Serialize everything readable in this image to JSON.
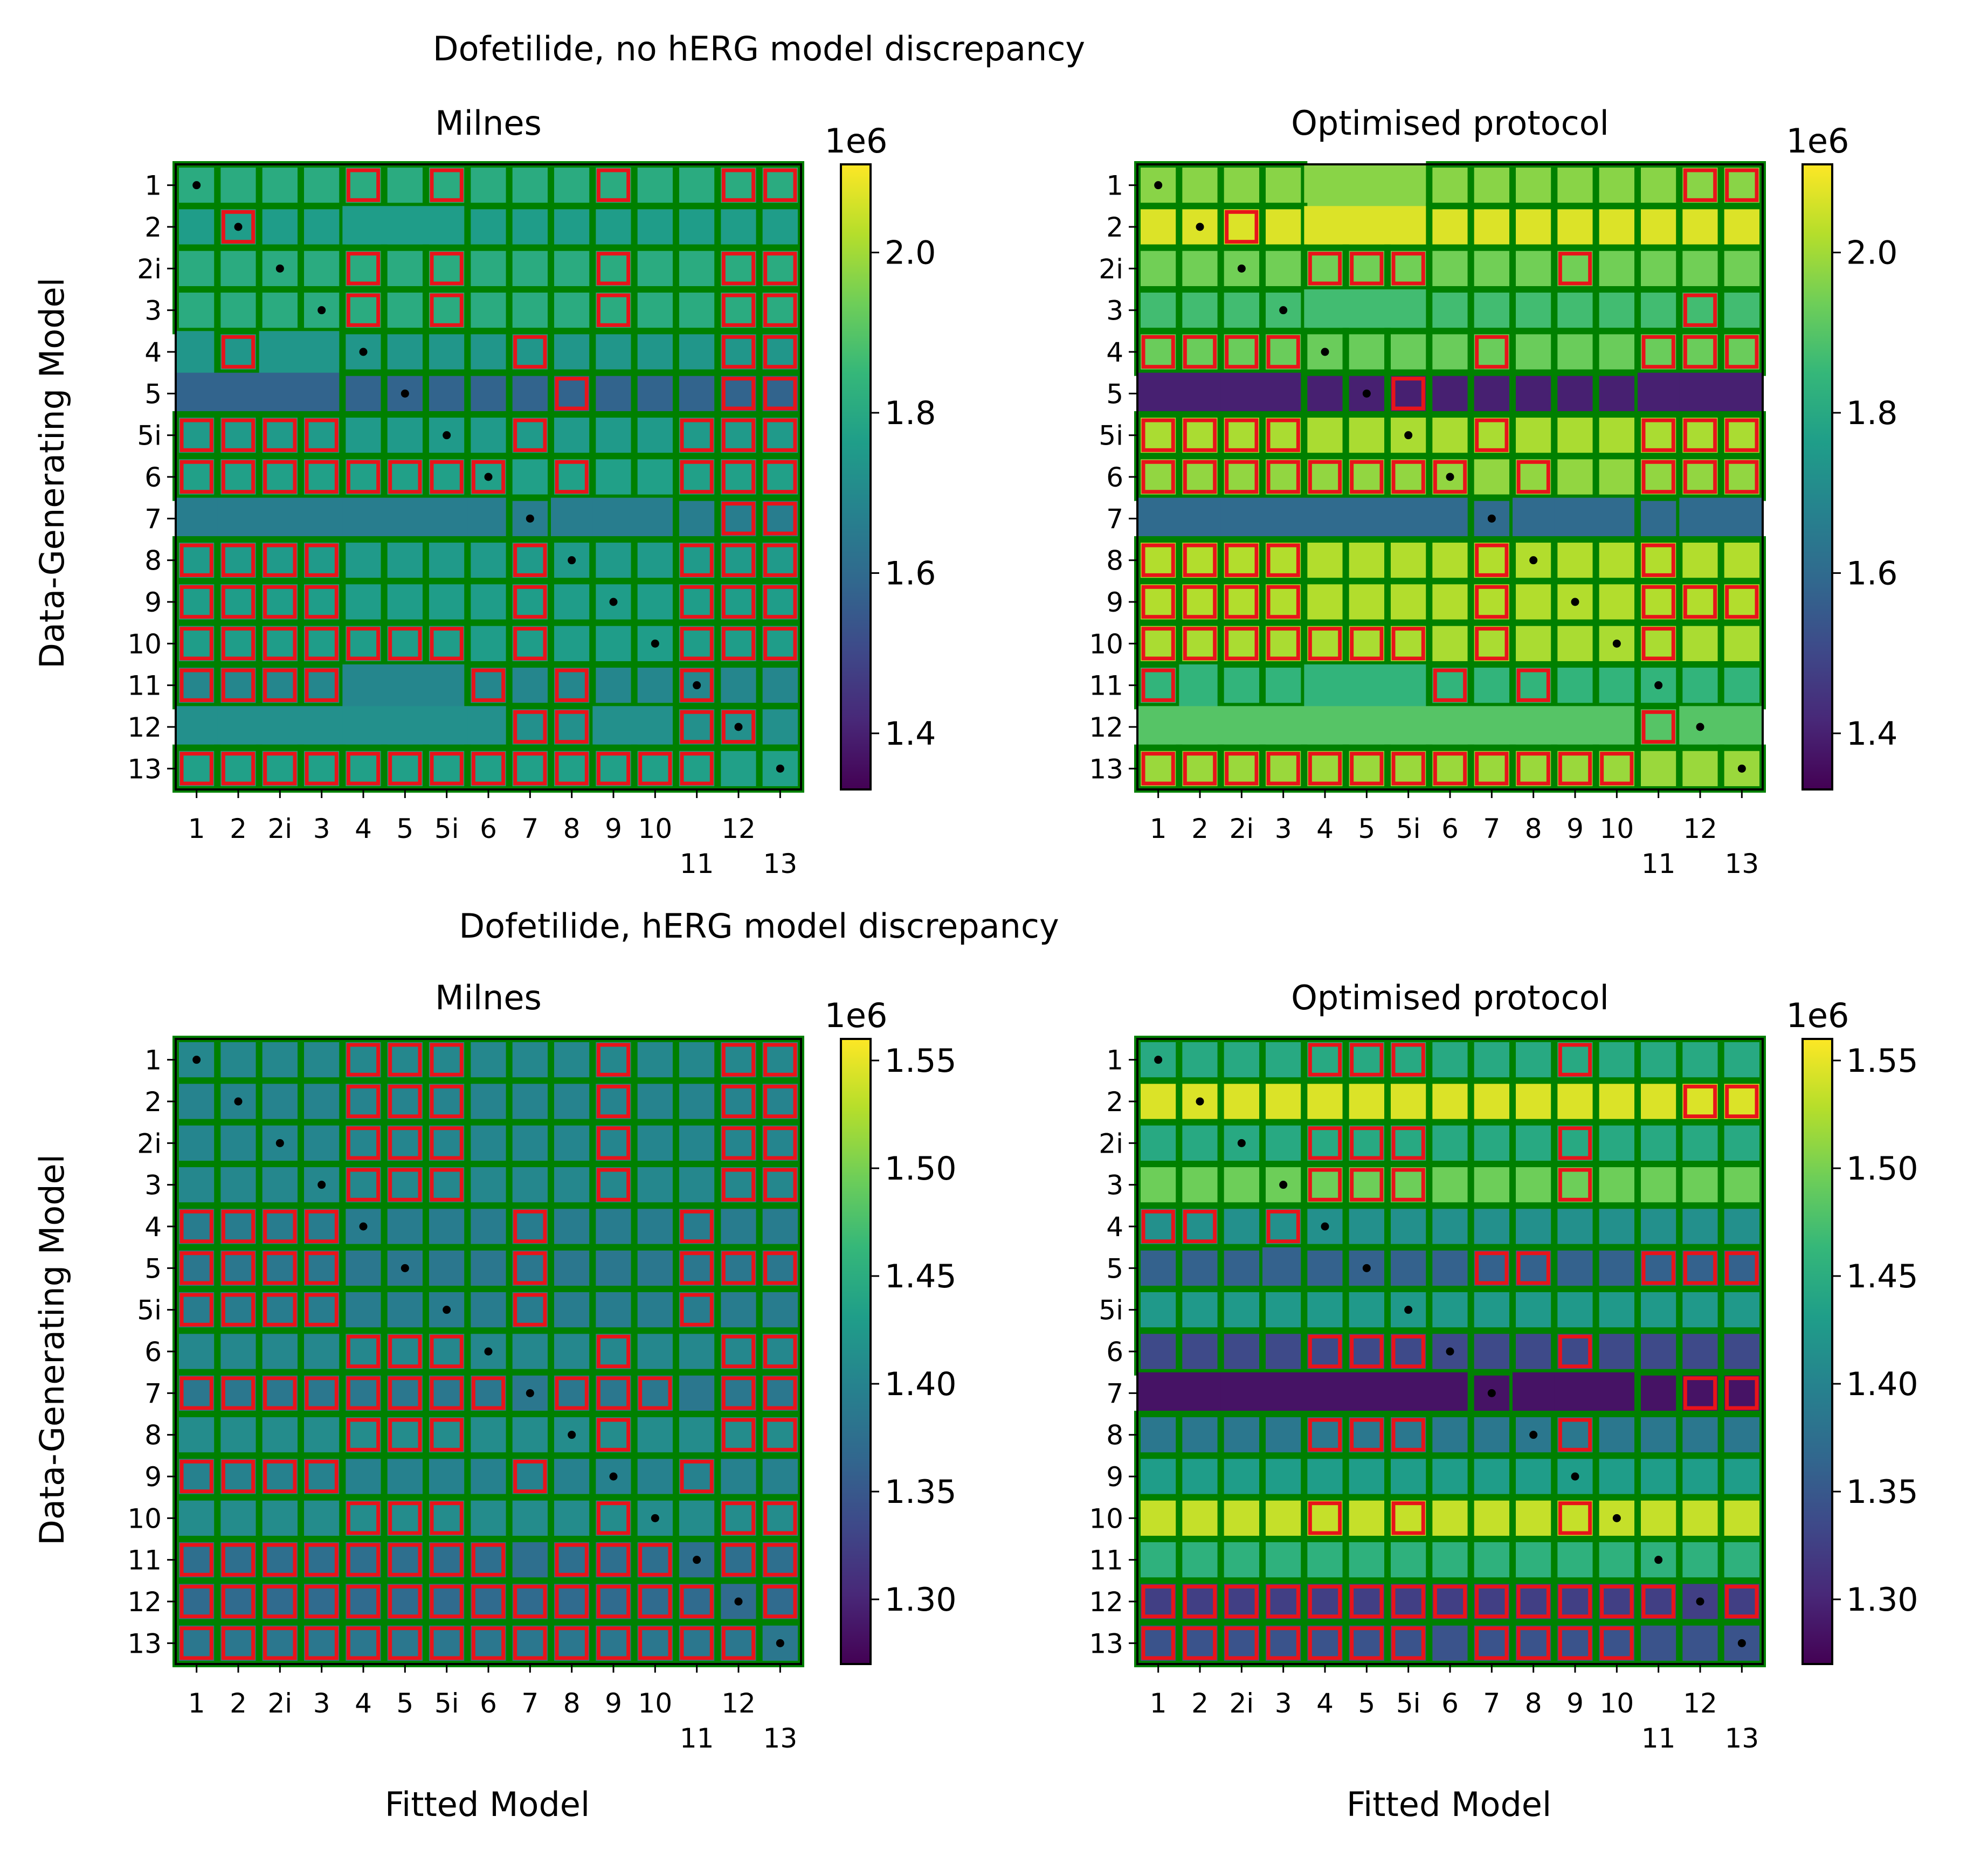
{
  "figure": {
    "top_title": "Dofetilide, no hERG model discrepancy",
    "bottom_title": "Dofetilide, hERG model discrepancy",
    "ylabel": "Data-Generating Model",
    "xlabel": "Fitted Model",
    "colormap": "viridis"
  },
  "models": [
    "1",
    "2",
    "2i",
    "3",
    "4",
    "5",
    "5i",
    "6",
    "7",
    "8",
    "9",
    "10",
    "11",
    "12",
    "13"
  ],
  "chart_data": [
    {
      "type": "heatmap",
      "panel": "top-left",
      "title": "Milnes",
      "group_title": "Dofetilide, no hERG model discrepancy",
      "colorbar": {
        "exponent_label": "1e6",
        "vmin": 1.33,
        "vmax": 2.11,
        "ticks": [
          1.4,
          1.6,
          1.8,
          2.0
        ],
        "tick_labels": [
          "1.4",
          "1.6",
          "1.8",
          "2.0"
        ]
      },
      "row_values": [
        1.81,
        1.76,
        1.81,
        1.81,
        1.74,
        1.58,
        1.75,
        1.77,
        1.66,
        1.75,
        1.76,
        1.76,
        1.69,
        1.72,
        1.77
      ],
      "red_boxes": [
        "000010100010011",
        "010000000000000",
        "000010100010011",
        "000010100010011",
        "010000001000011",
        "000000000100011",
        "111100001000111",
        "111111110100111",
        "000000000000011",
        "111100001000111",
        "111100001000111",
        "111111101000111",
        "111100010100100",
        "000000001100110",
        "111111111111100"
      ],
      "squares": [
        "111111111111111",
        "111100011111111",
        "111111111111111",
        "111111111111111",
        "010011111111111",
        "000011111111111",
        "111111111111111",
        "111111111111111",
        "000000001000111",
        "111111111111111",
        "111111111111111",
        "111111111111111",
        "111100011111111",
        "000000001100111",
        "111111111111111"
      ]
    },
    {
      "type": "heatmap",
      "panel": "top-right",
      "title": "Optimised protocol",
      "group_title": "Dofetilide, no hERG model discrepancy",
      "colorbar": {
        "exponent_label": "1e6",
        "vmin": 1.33,
        "vmax": 2.11,
        "ticks": [
          1.4,
          1.6,
          1.8,
          2.0
        ],
        "tick_labels": [
          "1.4",
          "1.6",
          "1.8",
          "2.0"
        ]
      },
      "row_values": [
        1.97,
        2.07,
        1.94,
        1.87,
        1.93,
        1.4,
        2.01,
        1.98,
        1.6,
        2.02,
        2.02,
        2.01,
        1.84,
        1.9,
        1.99
      ],
      "red_boxes": [
        "000000000000011",
        "001000000000000",
        "000011100010000",
        "000000000000010",
        "111100001000111",
        "000000100000000",
        "111100001000111",
        "111111110100111",
        "000000000000000",
        "111100001000100",
        "111100001000111",
        "111111101000100",
        "100000010100000",
        "000000000000100",
        "111111111111000"
      ],
      "squares": [
        "111100011111111",
        "111100011111111",
        "111111111111111",
        "111100011111111",
        "111111111111111",
        "000011111111000",
        "111111111111111",
        "111111111111111",
        "000000001000100",
        "111111111111111",
        "111111111111111",
        "111111111111111",
        "101100011111111",
        "000000000000100",
        "111111111111111"
      ]
    },
    {
      "type": "heatmap",
      "panel": "bottom-left",
      "title": "Milnes",
      "group_title": "Dofetilide, hERG model discrepancy",
      "colorbar": {
        "exponent_label": "1e6",
        "vmin": 1.27,
        "vmax": 1.56,
        "ticks": [
          1.3,
          1.35,
          1.4,
          1.45,
          1.5,
          1.55
        ],
        "tick_labels": [
          "1.30",
          "1.35",
          "1.40",
          "1.45",
          "1.50",
          "1.55"
        ]
      },
      "row_values": [
        1.405,
        1.4,
        1.402,
        1.405,
        1.392,
        1.385,
        1.392,
        1.405,
        1.385,
        1.41,
        1.398,
        1.41,
        1.375,
        1.37,
        1.385
      ],
      "red_boxes": [
        "000011100010011",
        "000011100010011",
        "000011100010011",
        "000011100010011",
        "111100001000100",
        "111100001000111",
        "111100001000100",
        "000011100010011",
        "111111110111011",
        "000011100010011",
        "111100001000100",
        "000011100010011",
        "111111110111011",
        "111111111111101",
        "111111111111110"
      ],
      "squares": [
        "111111111111111",
        "111111111111111",
        "111111111111111",
        "111111111111111",
        "111111111111111",
        "111111111111111",
        "111111111111111",
        "111111111111111",
        "111111111111111",
        "111111111111111",
        "111111111111111",
        "111111111111111",
        "111111111111111",
        "111111111111111",
        "111111111111111"
      ]
    },
    {
      "type": "heatmap",
      "panel": "bottom-right",
      "title": "Optimised protocol",
      "group_title": "Dofetilide, hERG model discrepancy",
      "colorbar": {
        "exponent_label": "1e6",
        "vmin": 1.27,
        "vmax": 1.56,
        "ticks": [
          1.3,
          1.35,
          1.4,
          1.45,
          1.5,
          1.55
        ],
        "tick_labels": [
          "1.30",
          "1.35",
          "1.40",
          "1.45",
          "1.50",
          "1.55"
        ]
      },
      "row_values": [
        1.445,
        1.545,
        1.445,
        1.495,
        1.415,
        1.36,
        1.425,
        1.335,
        1.285,
        1.385,
        1.43,
        1.535,
        1.455,
        1.325,
        1.345
      ],
      "red_boxes": [
        "000011100010000",
        "000000000000011",
        "000011100010000",
        "000011100010000",
        "110100000000000",
        "000000001100111",
        "000000000000000",
        "000011100010000",
        "000000000000011",
        "000011100010000",
        "000000000000000",
        "000010100010000",
        "000000000000000",
        "111111111111101",
        "111111101111000"
      ],
      "squares": [
        "111111111111111",
        "111111111111111",
        "111111111111111",
        "111111111111111",
        "111111111111111",
        "111011111111111",
        "111111111111111",
        "111111111111111",
        "000000001000111",
        "111111111111111",
        "111111111111111",
        "111111111111111",
        "111111111111111",
        "111111111111111",
        "111111111111111"
      ]
    }
  ]
}
